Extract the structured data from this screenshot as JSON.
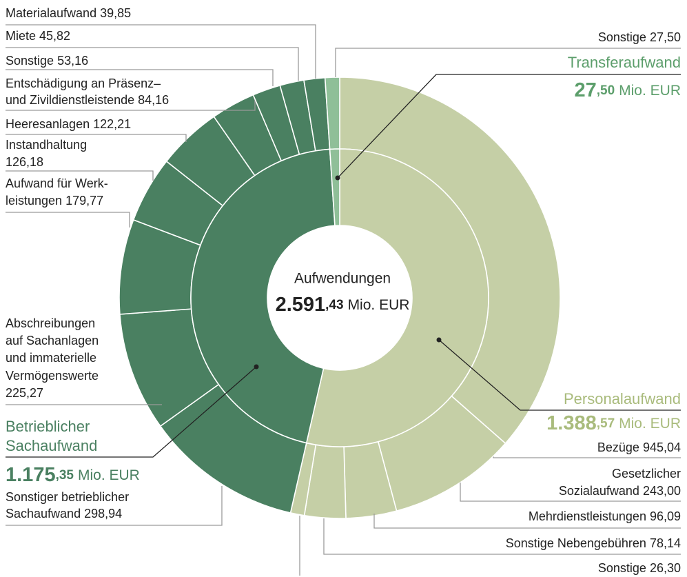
{
  "chart_data": {
    "type": "sunburst",
    "title": "Aufwendungen",
    "total": 2591.43,
    "total_label": [
      "2.591",
      ",43"
    ],
    "unit": "Mio. EUR",
    "groups": [
      {
        "name": [
          "Personalaufwand"
        ],
        "value": 1388.57,
        "value_label": [
          "1.388",
          ",57"
        ],
        "color": "#c5cfa6",
        "label_color": "#a9bb7c",
        "children": [
          {
            "name": [
              "Bezüge"
            ],
            "value": 945.04,
            "value_label": "945,04"
          },
          {
            "name": [
              "Gesetzlicher",
              "Sozialaufwand"
            ],
            "value": 243.0,
            "value_label": "243,00"
          },
          {
            "name": [
              "Mehrdienstleistungen"
            ],
            "value": 96.09,
            "value_label": "96,09"
          },
          {
            "name": [
              "Sonstige Nebengebühren"
            ],
            "value": 78.14,
            "value_label": "78,14"
          },
          {
            "name": [
              "Sonstige"
            ],
            "value": 26.3,
            "value_label": "26,30"
          }
        ]
      },
      {
        "name": [
          "Betrieblicher",
          "Sachaufwand"
        ],
        "value": 1175.35,
        "value_label": [
          "1.175",
          ",35"
        ],
        "color": "#4a8061",
        "label_color": "#4a8061",
        "children": [
          {
            "name": [
              "Sonstiger betrieblicher",
              "Sachaufwand"
            ],
            "value": 298.94,
            "value_label": "298,94"
          },
          {
            "name": [
              "Abschreibungen",
              "auf Sachanlagen",
              "und immaterielle",
              "Vermögenswerte"
            ],
            "value": 225.27,
            "value_label": "225,27"
          },
          {
            "name": [
              "Aufwand für Werk-",
              "leistungen"
            ],
            "value": 179.77,
            "value_label": "179,77"
          },
          {
            "name": [
              "Instandhaltung"
            ],
            "value": 126.18,
            "value_label": "126,18"
          },
          {
            "name": [
              "Heeresanlagen"
            ],
            "value": 122.21,
            "value_label": "122,21"
          },
          {
            "name": [
              "Entschädigung an Präsenz–",
              "und Zivildienstleistende"
            ],
            "value": 84.16,
            "value_label": "84,16"
          },
          {
            "name": [
              "Sonstige"
            ],
            "value": 53.16,
            "value_label": "53,16"
          },
          {
            "name": [
              "Miete"
            ],
            "value": 45.82,
            "value_label": "45,82"
          },
          {
            "name": [
              "Materialaufwand"
            ],
            "value": 39.85,
            "value_label": "39,85"
          }
        ]
      },
      {
        "name": [
          "Transferaufwand"
        ],
        "value": 27.5,
        "value_label": [
          "27",
          ",50"
        ],
        "color": "#8fbf98",
        "label_color": "#5c9e6b",
        "children": [
          {
            "name": [
              "Sonstige"
            ],
            "value": 27.5,
            "value_label": "27,50"
          }
        ]
      }
    ]
  }
}
